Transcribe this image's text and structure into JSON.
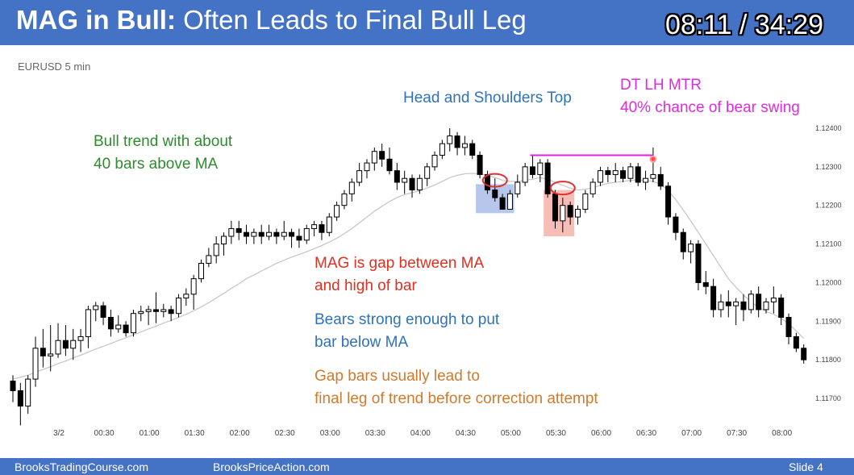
{
  "header": {
    "title_bold": "MAG in Bull:",
    "title_rest": " Often Leads to Final Bull Leg",
    "timer": "08:11 / 34:29"
  },
  "footer": {
    "left": "BrooksTradingCourse.com",
    "center": "BrooksPriceAction.com",
    "right": "Slide  4"
  },
  "annotations": {
    "bull_trend": [
      "Bull trend with about",
      "40 bars above MA"
    ],
    "hs_top": "Head and Shoulders Top",
    "dt": [
      "DT LH MTR",
      "40% chance of bear swing"
    ],
    "mag": [
      "MAG is gap between MA",
      "and high of bar"
    ],
    "bears": [
      "Bears strong enough to put",
      "bar below MA"
    ],
    "gap": [
      "Gap bars usually lead to",
      "final leg of trend before correction attempt"
    ]
  },
  "colors": {
    "header_bg": "#4472c4",
    "bull_text": "#2e8b2e",
    "hs_text": "#2f73b7",
    "dt_text": "#e02ae0",
    "mag_text": "#e03020",
    "bears_text": "#2f73b7",
    "gap_text": "#d07a2e",
    "ma_line": "#c8c8c8",
    "blue_box": "#9fb4e6",
    "red_box": "#f4a8a0",
    "ellipse": "#e03030",
    "magenta_line": "#e020e0"
  },
  "chart_data": {
    "type": "candlestick",
    "title": "EURUSD 5 min",
    "y_ticks": [
      1.124,
      1.123,
      1.122,
      1.121,
      1.12,
      1.119,
      1.118,
      1.117
    ],
    "y_tick_labels": [
      "1.12400",
      "1.12300",
      "1.12200",
      "1.12100",
      "1.12000",
      "1.11900",
      "1.11800",
      "1.11700"
    ],
    "ylim": [
      1.1166,
      1.1246
    ],
    "x_ticks": [
      "3/2",
      "00:30",
      "01:00",
      "01:30",
      "02:00",
      "02:30",
      "03:00",
      "03:30",
      "04:00",
      "04:30",
      "05:00",
      "05:30",
      "06:00",
      "06:30",
      "07:00",
      "07:30",
      "08:00"
    ],
    "x_tick_bar_index": [
      3,
      9,
      15,
      21,
      27,
      33,
      39,
      45,
      51,
      57,
      63,
      69,
      75,
      81,
      87,
      93,
      99
    ],
    "candles": [
      [
        1.11745,
        1.1176,
        1.1169,
        1.1172
      ],
      [
        1.1172,
        1.1174,
        1.1163,
        1.1168
      ],
      [
        1.1168,
        1.1176,
        1.1166,
        1.1175
      ],
      [
        1.1175,
        1.1186,
        1.1173,
        1.1183
      ],
      [
        1.1183,
        1.1188,
        1.1178,
        1.1181
      ],
      [
        1.1181,
        1.1189,
        1.1177,
        1.11815
      ],
      [
        1.11815,
        1.11895,
        1.11805,
        1.1185
      ],
      [
        1.1185,
        1.1189,
        1.1181,
        1.1183
      ],
      [
        1.1183,
        1.1188,
        1.118,
        1.1185
      ],
      [
        1.1185,
        1.1188,
        1.1182,
        1.1186
      ],
      [
        1.1186,
        1.1194,
        1.1183,
        1.1193
      ],
      [
        1.1193,
        1.1195,
        1.119,
        1.1194
      ],
      [
        1.1194,
        1.1195,
        1.1189,
        1.1191
      ],
      [
        1.1191,
        1.1193,
        1.1186,
        1.1188
      ],
      [
        1.1188,
        1.11915,
        1.1187,
        1.1189
      ],
      [
        1.1189,
        1.119,
        1.1186,
        1.1187
      ],
      [
        1.1187,
        1.1193,
        1.1186,
        1.1192
      ],
      [
        1.1192,
        1.1194,
        1.119,
        1.11925
      ],
      [
        1.11925,
        1.1194,
        1.1189,
        1.1193
      ],
      [
        1.1193,
        1.11975,
        1.11895,
        1.11925
      ],
      [
        1.11925,
        1.11945,
        1.1191,
        1.1193
      ],
      [
        1.1193,
        1.1194,
        1.119,
        1.1192
      ],
      [
        1.1192,
        1.1197,
        1.1191,
        1.1196
      ],
      [
        1.1196,
        1.11985,
        1.1194,
        1.1197
      ],
      [
        1.1197,
        1.1202,
        1.1193,
        1.1201
      ],
      [
        1.1201,
        1.1206,
        1.12,
        1.1205
      ],
      [
        1.1205,
        1.1209,
        1.1204,
        1.1207
      ],
      [
        1.1207,
        1.1212,
        1.1205,
        1.121
      ],
      [
        1.121,
        1.1213,
        1.1207,
        1.1212
      ],
      [
        1.1212,
        1.1216,
        1.121,
        1.1214
      ],
      [
        1.1214,
        1.1216,
        1.1211,
        1.1213
      ],
      [
        1.1213,
        1.1215,
        1.121,
        1.1212
      ],
      [
        1.1212,
        1.1214,
        1.121,
        1.1213
      ],
      [
        1.1213,
        1.1215,
        1.121,
        1.1212
      ],
      [
        1.1212,
        1.1215,
        1.1211,
        1.1213
      ],
      [
        1.1213,
        1.1214,
        1.121,
        1.1212
      ],
      [
        1.1212,
        1.1216,
        1.1211,
        1.1213
      ],
      [
        1.1213,
        1.1214,
        1.1209,
        1.1212
      ],
      [
        1.1212,
        1.1214,
        1.1209,
        1.1211
      ],
      [
        1.1211,
        1.1215,
        1.121,
        1.1214
      ],
      [
        1.1214,
        1.1216,
        1.1212,
        1.1215
      ],
      [
        1.1215,
        1.1216,
        1.1211,
        1.1213
      ],
      [
        1.1213,
        1.1218,
        1.1212,
        1.1217
      ],
      [
        1.1217,
        1.1221,
        1.1216,
        1.122
      ],
      [
        1.122,
        1.1224,
        1.1219,
        1.1223
      ],
      [
        1.1223,
        1.1227,
        1.1221,
        1.1226
      ],
      [
        1.1226,
        1.1231,
        1.1225,
        1.1229
      ],
      [
        1.1229,
        1.1232,
        1.1227,
        1.1231
      ],
      [
        1.1231,
        1.1235,
        1.1229,
        1.1234
      ],
      [
        1.1234,
        1.1236,
        1.123,
        1.1232
      ],
      [
        1.1232,
        1.1235,
        1.1228,
        1.1229
      ],
      [
        1.1229,
        1.1231,
        1.1224,
        1.1226
      ],
      [
        1.1226,
        1.1229,
        1.1223,
        1.1227
      ],
      [
        1.1227,
        1.1228,
        1.1222,
        1.1224
      ],
      [
        1.1224,
        1.1228,
        1.1223,
        1.1227
      ],
      [
        1.1227,
        1.1231,
        1.1225,
        1.123
      ],
      [
        1.123,
        1.1234,
        1.1229,
        1.1233
      ],
      [
        1.1233,
        1.1237,
        1.1232,
        1.1236
      ],
      [
        1.1236,
        1.124,
        1.1234,
        1.1238
      ],
      [
        1.1238,
        1.1239,
        1.1233,
        1.1235
      ],
      [
        1.1235,
        1.1238,
        1.1233,
        1.1236
      ],
      [
        1.1236,
        1.1237,
        1.1232,
        1.1233
      ],
      [
        1.1233,
        1.1234,
        1.1227,
        1.1228
      ],
      [
        1.1228,
        1.1229,
        1.1223,
        1.1224
      ],
      [
        1.1224,
        1.1227,
        1.1221,
        1.1222
      ],
      [
        1.1222,
        1.1223,
        1.1219,
        1.1219
      ],
      [
        1.1219,
        1.1224,
        1.1219,
        1.1223
      ],
      [
        1.1223,
        1.1228,
        1.1222,
        1.1226
      ],
      [
        1.1226,
        1.1231,
        1.1225,
        1.123
      ],
      [
        1.123,
        1.1233,
        1.1227,
        1.1228
      ],
      [
        1.1228,
        1.1232,
        1.1226,
        1.1231
      ],
      [
        1.1231,
        1.1232,
        1.1222,
        1.1223
      ],
      [
        1.1223,
        1.1224,
        1.1214,
        1.1216
      ],
      [
        1.1216,
        1.1222,
        1.1213,
        1.122
      ],
      [
        1.122,
        1.1221,
        1.1215,
        1.1217
      ],
      [
        1.1217,
        1.122,
        1.1215,
        1.1219
      ],
      [
        1.1219,
        1.1224,
        1.1218,
        1.1223
      ],
      [
        1.1223,
        1.1227,
        1.1222,
        1.1226
      ],
      [
        1.1226,
        1.123,
        1.1225,
        1.1229
      ],
      [
        1.1229,
        1.123,
        1.1226,
        1.1228
      ],
      [
        1.1228,
        1.1231,
        1.1226,
        1.1229
      ],
      [
        1.1229,
        1.123,
        1.1226,
        1.1227
      ],
      [
        1.1227,
        1.1231,
        1.1226,
        1.123
      ],
      [
        1.123,
        1.1231,
        1.1225,
        1.1226
      ],
      [
        1.1226,
        1.1229,
        1.1224,
        1.1227
      ],
      [
        1.1227,
        1.1235,
        1.1226,
        1.1228
      ],
      [
        1.1228,
        1.123,
        1.1224,
        1.1225
      ],
      [
        1.1225,
        1.1226,
        1.1215,
        1.1217
      ],
      [
        1.1217,
        1.1218,
        1.1211,
        1.1213
      ],
      [
        1.1213,
        1.1214,
        1.1206,
        1.1208
      ],
      [
        1.1208,
        1.1211,
        1.1205,
        1.121
      ],
      [
        1.121,
        1.1211,
        1.1198,
        1.12
      ],
      [
        1.12,
        1.1203,
        1.1197,
        1.1199
      ],
      [
        1.1199,
        1.1201,
        1.1191,
        1.1193
      ],
      [
        1.1193,
        1.1197,
        1.1191,
        1.1195
      ],
      [
        1.1195,
        1.1198,
        1.1191,
        1.1194
      ],
      [
        1.1194,
        1.1196,
        1.1189,
        1.1195
      ],
      [
        1.1195,
        1.1197,
        1.119,
        1.1193
      ],
      [
        1.1193,
        1.1198,
        1.1192,
        1.1197
      ],
      [
        1.1197,
        1.1199,
        1.1191,
        1.1193
      ],
      [
        1.1193,
        1.1196,
        1.1192,
        1.1195
      ],
      [
        1.1195,
        1.1199,
        1.1192,
        1.1196
      ],
      [
        1.1196,
        1.1197,
        1.1189,
        1.1191
      ],
      [
        1.1191,
        1.1192,
        1.1184,
        1.1186
      ],
      [
        1.1186,
        1.1187,
        1.1182,
        1.1183
      ],
      [
        1.1183,
        1.1184,
        1.1179,
        1.118
      ]
    ],
    "moving_average": [
      1.1175,
      1.11755,
      1.1176,
      1.11768,
      1.11775,
      1.11782,
      1.1179,
      1.11797,
      1.11805,
      1.11812,
      1.1182,
      1.11828,
      1.11835,
      1.11842,
      1.1185,
      1.11857,
      1.11865,
      1.11872,
      1.1188,
      1.11887,
      1.11895,
      1.11902,
      1.1191,
      1.11918,
      1.11927,
      1.11937,
      1.11948,
      1.1196,
      1.11972,
      1.11985,
      1.11997,
      1.1201,
      1.1202,
      1.1203,
      1.1204,
      1.1205,
      1.12058,
      1.12066,
      1.12073,
      1.1208,
      1.12088,
      1.12096,
      1.12105,
      1.12115,
      1.12127,
      1.1214,
      1.12155,
      1.1217,
      1.12185,
      1.12198,
      1.1221,
      1.1222,
      1.12228,
      1.12233,
      1.12238,
      1.12245,
      1.12253,
      1.12262,
      1.12272,
      1.12278,
      1.12282,
      1.12283,
      1.12282,
      1.12278,
      1.12272,
      1.12265,
      1.12262,
      1.12262,
      1.12265,
      1.12268,
      1.12272,
      1.12268,
      1.1226,
      1.12252,
      1.12245,
      1.1224,
      1.12242,
      1.12246,
      1.12252,
      1.12257,
      1.1226,
      1.12262,
      1.12265,
      1.12266,
      1.12265,
      1.12262,
      1.12255,
      1.12238,
      1.12215,
      1.12188,
      1.1216,
      1.1213,
      1.121,
      1.1207,
      1.1204,
      1.1201,
      1.11988,
      1.11968,
      1.1195,
      1.11936,
      1.11925,
      1.11918,
      1.11908,
      1.11893,
      1.11875,
      1.11855
    ]
  }
}
